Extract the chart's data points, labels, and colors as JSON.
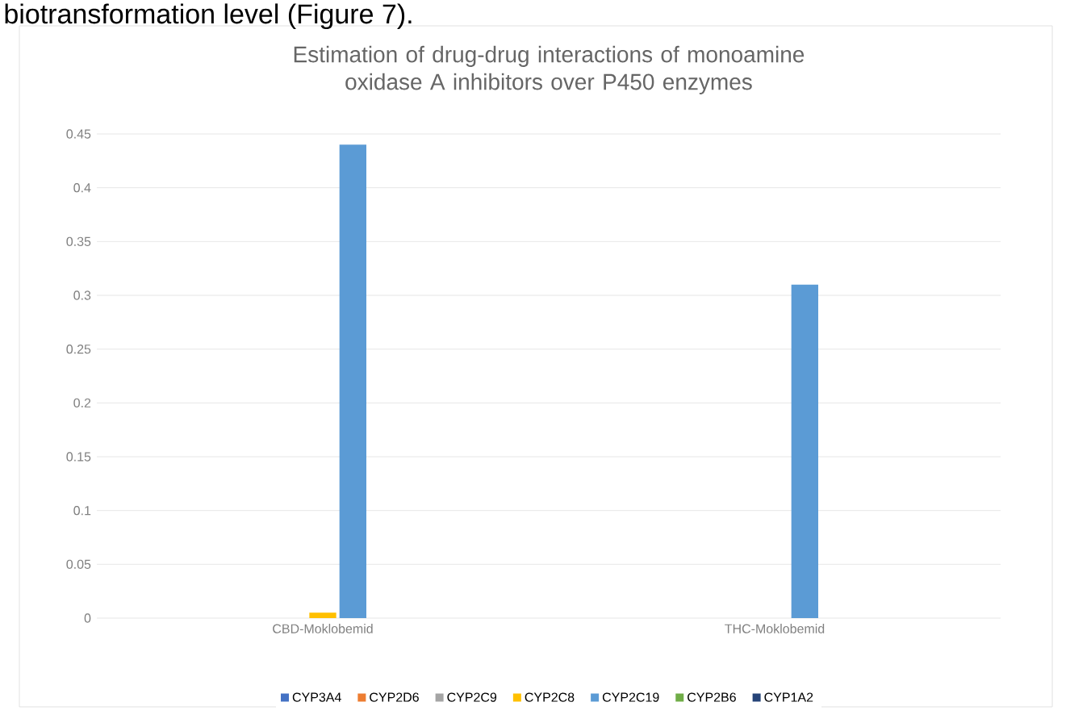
{
  "chart_data": {
    "type": "bar",
    "title": "Estimation of drug-drug interactions of monoamine oxidase A inhibitors over P450 enzymes",
    "annotations": [
      "biotransformation level (Figure 7)."
    ],
    "categories": [
      "CBD-Moklobemid",
      "THC-Moklobemid"
    ],
    "series": [
      {
        "name": "CYP3A4",
        "color": "#4472c4",
        "values": [
          0,
          0
        ]
      },
      {
        "name": "CYP2D6",
        "color": "#ed7d31",
        "values": [
          0,
          0
        ]
      },
      {
        "name": "CYP2C9",
        "color": "#a5a5a5",
        "values": [
          0,
          0
        ]
      },
      {
        "name": "CYP2C8",
        "color": "#ffc000",
        "values": [
          0.005,
          0
        ]
      },
      {
        "name": "CYP2C19",
        "color": "#5b9bd5",
        "values": [
          0.44,
          0.31
        ]
      },
      {
        "name": "CYP2B6",
        "color": "#70ad47",
        "values": [
          0,
          0
        ]
      },
      {
        "name": "CYP1A2",
        "color": "#264478",
        "values": [
          0,
          0
        ]
      }
    ],
    "ylim": [
      0,
      0.45
    ],
    "yticks": [
      0,
      0.05,
      0.1,
      0.15,
      0.2,
      0.25,
      0.3,
      0.35,
      0.4,
      0.45
    ],
    "grid": "y",
    "legend": "bottom"
  }
}
